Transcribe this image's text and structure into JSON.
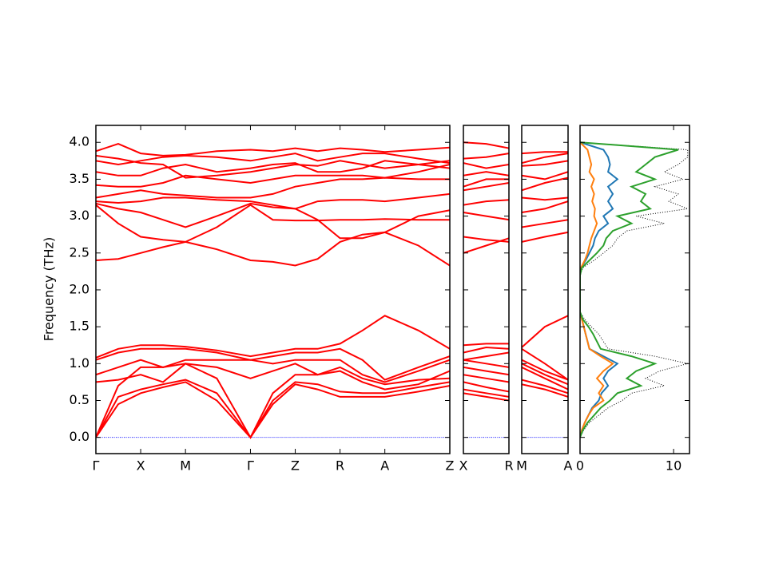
{
  "chart_data": [
    {
      "type": "line",
      "ylabel": "Frequency (THz)",
      "color": "#ff0000",
      "xlim": [
        0,
        7.9
      ],
      "ylim": [
        -0.22,
        4.23
      ],
      "xticks": [
        {
          "value": 0,
          "label": "Γ"
        },
        {
          "value": 1,
          "label": "X"
        },
        {
          "value": 2,
          "label": "M"
        },
        {
          "value": 3.45,
          "label": "Γ"
        },
        {
          "value": 4.45,
          "label": "Z"
        },
        {
          "value": 5.45,
          "label": "R"
        },
        {
          "value": 6.45,
          "label": "A"
        },
        {
          "value": 7.9,
          "label": "Z"
        }
      ],
      "yticks": [
        {
          "value": 0,
          "label": "0.0"
        },
        {
          "value": 0.5,
          "label": "0.5"
        },
        {
          "value": 1,
          "label": "1.0"
        },
        {
          "value": 1.5,
          "label": "1.5"
        },
        {
          "value": 2,
          "label": "2.0"
        },
        {
          "value": 2.5,
          "label": "2.5"
        },
        {
          "value": 3,
          "label": "3.0"
        },
        {
          "value": 3.5,
          "label": "3.5"
        },
        {
          "value": 4,
          "label": "4.0"
        }
      ],
      "hline": {
        "value": 0,
        "color": "#0000ff"
      },
      "x": [
        0,
        0.5,
        1,
        1.5,
        2,
        2.7,
        3.45,
        3.95,
        4.45,
        4.95,
        5.45,
        5.95,
        6.45,
        7.2,
        7.9
      ],
      "series": [
        {
          "values": [
            0,
            0.45,
            0.6,
            0.68,
            0.75,
            0.5,
            0,
            0.45,
            0.72,
            0.65,
            0.55,
            0.55,
            0.55,
            0.62,
            0.7
          ]
        },
        {
          "values": [
            0,
            0.55,
            0.65,
            0.72,
            0.78,
            0.6,
            0,
            0.5,
            0.75,
            0.72,
            0.62,
            0.6,
            0.6,
            0.68,
            0.75
          ]
        },
        {
          "values": [
            0,
            0.7,
            0.95,
            0.95,
            1.0,
            0.8,
            0,
            0.6,
            0.85,
            0.85,
            0.95,
            0.8,
            0.72,
            0.78,
            0.8
          ]
        },
        {
          "values": [
            0.75,
            0.78,
            0.85,
            0.75,
            1.0,
            0.95,
            0.8,
            0.9,
            1.0,
            0.85,
            0.9,
            0.75,
            0.65,
            0.72,
            0.9
          ]
        },
        {
          "values": [
            0.85,
            0.95,
            1.05,
            0.95,
            1.05,
            1.05,
            1.05,
            1.0,
            1.05,
            1.05,
            1.05,
            0.85,
            0.75,
            0.9,
            1.05
          ]
        },
        {
          "values": [
            1.05,
            1.15,
            1.2,
            1.2,
            1.2,
            1.15,
            1.05,
            1.1,
            1.15,
            1.15,
            1.2,
            1.05,
            0.78,
            0.95,
            1.1
          ]
        },
        {
          "values": [
            1.08,
            1.2,
            1.25,
            1.25,
            1.23,
            1.18,
            1.1,
            1.15,
            1.2,
            1.2,
            1.27,
            1.45,
            1.65,
            1.45,
            1.2
          ]
        },
        {
          "values": [
            2.4,
            2.42,
            2.5,
            2.58,
            2.65,
            2.55,
            2.4,
            2.38,
            2.33,
            2.42,
            2.65,
            2.75,
            2.78,
            2.6,
            2.33
          ]
        },
        {
          "values": [
            3.15,
            2.9,
            2.72,
            2.68,
            2.65,
            2.85,
            3.15,
            2.95,
            2.94,
            2.94,
            2.95,
            2.95,
            2.96,
            2.95,
            2.95
          ]
        },
        {
          "values": [
            3.17,
            3.1,
            3.05,
            2.95,
            2.85,
            3.0,
            3.17,
            3.12,
            3.1,
            2.95,
            2.7,
            2.7,
            2.78,
            3.0,
            3.08
          ]
        },
        {
          "values": [
            3.2,
            3.18,
            3.2,
            3.25,
            3.25,
            3.22,
            3.2,
            3.15,
            3.1,
            3.2,
            3.22,
            3.22,
            3.2,
            3.25,
            3.3
          ]
        },
        {
          "values": [
            3.25,
            3.3,
            3.35,
            3.3,
            3.28,
            3.25,
            3.25,
            3.3,
            3.4,
            3.45,
            3.5,
            3.5,
            3.52,
            3.5,
            3.5
          ]
        },
        {
          "values": [
            3.42,
            3.4,
            3.4,
            3.45,
            3.55,
            3.5,
            3.45,
            3.5,
            3.55,
            3.55,
            3.55,
            3.55,
            3.52,
            3.6,
            3.7
          ]
        },
        {
          "values": [
            3.6,
            3.55,
            3.55,
            3.65,
            3.7,
            3.6,
            3.65,
            3.7,
            3.72,
            3.6,
            3.6,
            3.65,
            3.75,
            3.7,
            3.65
          ]
        },
        {
          "values": [
            3.75,
            3.7,
            3.75,
            3.8,
            3.82,
            3.8,
            3.75,
            3.8,
            3.85,
            3.75,
            3.8,
            3.85,
            3.85,
            3.78,
            3.72
          ]
        },
        {
          "values": [
            3.88,
            3.98,
            3.85,
            3.82,
            3.83,
            3.88,
            3.9,
            3.88,
            3.92,
            3.88,
            3.92,
            3.9,
            3.87,
            3.9,
            3.93
          ]
        },
        {
          "values": [
            3.82,
            3.78,
            3.72,
            3.7,
            3.52,
            3.55,
            3.6,
            3.65,
            3.7,
            3.68,
            3.75,
            3.7,
            3.65,
            3.7,
            3.75
          ]
        }
      ]
    },
    {
      "type": "line",
      "color": "#ff0000",
      "xlim": [
        0,
        1
      ],
      "ylim": [
        -0.22,
        4.23
      ],
      "xticks": [
        {
          "value": 0,
          "label": "X"
        },
        {
          "value": 1,
          "label": "R"
        }
      ],
      "hline": {
        "value": 0,
        "color": "#0000ff"
      },
      "x": [
        0,
        0.5,
        1
      ],
      "series": [
        {
          "values": [
            0.6,
            0.55,
            0.5
          ]
        },
        {
          "values": [
            0.65,
            0.6,
            0.55
          ]
        },
        {
          "values": [
            0.75,
            0.68,
            0.62
          ]
        },
        {
          "values": [
            0.85,
            0.8,
            0.75
          ]
        },
        {
          "values": [
            0.95,
            0.9,
            0.85
          ]
        },
        {
          "values": [
            1.05,
            1.0,
            0.95
          ]
        },
        {
          "values": [
            1.05,
            1.1,
            1.15
          ]
        },
        {
          "values": [
            1.15,
            1.22,
            1.2
          ]
        },
        {
          "values": [
            1.25,
            1.27,
            1.27
          ]
        },
        {
          "values": [
            2.5,
            2.6,
            2.7
          ]
        },
        {
          "values": [
            2.72,
            2.68,
            2.65
          ]
        },
        {
          "values": [
            3.05,
            3.0,
            2.95
          ]
        },
        {
          "values": [
            3.15,
            3.2,
            3.22
          ]
        },
        {
          "values": [
            3.35,
            3.4,
            3.45
          ]
        },
        {
          "values": [
            3.4,
            3.5,
            3.5
          ]
        },
        {
          "values": [
            3.55,
            3.6,
            3.55
          ]
        },
        {
          "values": [
            3.72,
            3.65,
            3.7
          ]
        },
        {
          "values": [
            3.78,
            3.8,
            3.85
          ]
        },
        {
          "values": [
            4.0,
            3.98,
            3.92
          ]
        }
      ]
    },
    {
      "type": "line",
      "color": "#ff0000",
      "xlim": [
        0,
        1
      ],
      "ylim": [
        -0.22,
        4.23
      ],
      "xticks": [
        {
          "value": 0,
          "label": "M"
        },
        {
          "value": 1,
          "label": "A"
        }
      ],
      "hline": {
        "value": 0,
        "color": "#0000ff"
      },
      "x": [
        0,
        0.5,
        1
      ],
      "series": [
        {
          "values": [
            0.72,
            0.65,
            0.55
          ]
        },
        {
          "values": [
            0.78,
            0.7,
            0.6
          ]
        },
        {
          "values": [
            0.95,
            0.8,
            0.65
          ]
        },
        {
          "values": [
            1.0,
            0.85,
            0.72
          ]
        },
        {
          "values": [
            1.05,
            0.9,
            0.78
          ]
        },
        {
          "values": [
            1.2,
            1.0,
            0.78
          ]
        },
        {
          "values": [
            1.22,
            1.5,
            1.65
          ]
        },
        {
          "values": [
            2.65,
            2.72,
            2.78
          ]
        },
        {
          "values": [
            2.85,
            2.9,
            2.95
          ]
        },
        {
          "values": [
            3.05,
            3.1,
            3.2
          ]
        },
        {
          "values": [
            3.25,
            3.22,
            3.25
          ]
        },
        {
          "values": [
            3.35,
            3.45,
            3.52
          ]
        },
        {
          "values": [
            3.55,
            3.5,
            3.6
          ]
        },
        {
          "values": [
            3.68,
            3.7,
            3.75
          ]
        },
        {
          "values": [
            3.72,
            3.8,
            3.85
          ]
        },
        {
          "values": [
            3.85,
            3.87,
            3.87
          ]
        }
      ]
    },
    {
      "type": "line",
      "orientation": "horizontal",
      "xlim": [
        0,
        11.7
      ],
      "ylim": [
        -0.22,
        4.23
      ],
      "xticks": [
        0,
        10
      ],
      "y": [
        0,
        0.1,
        0.2,
        0.3,
        0.4,
        0.5,
        0.6,
        0.7,
        0.8,
        0.9,
        1.0,
        1.1,
        1.2,
        1.3,
        1.4,
        1.5,
        1.6,
        1.7,
        1.8,
        1.9,
        2.0,
        2.1,
        2.2,
        2.3,
        2.4,
        2.5,
        2.6,
        2.7,
        2.8,
        2.9,
        3.0,
        3.1,
        3.2,
        3.3,
        3.4,
        3.5,
        3.6,
        3.7,
        3.8,
        3.9,
        4.0
      ],
      "series": [
        {
          "color": "#000000",
          "dashed": true,
          "values": [
            0,
            0.4,
            1.0,
            2.0,
            3.0,
            4.5,
            5.5,
            9.0,
            7.0,
            8.5,
            11.5,
            8.0,
            3.0,
            2.5,
            2.0,
            1.2,
            0.5,
            0,
            0,
            0,
            0,
            0,
            0,
            0.3,
            1.5,
            2.5,
            3.5,
            4.0,
            5.0,
            9.0,
            6.0,
            11.5,
            9.5,
            10.5,
            8.0,
            11.0,
            9.0,
            10.5,
            11.5,
            11.5,
            0
          ]
        },
        {
          "color": "#1f77b4",
          "values": [
            0,
            0.2,
            0.5,
            0.9,
            1.3,
            2.0,
            2.3,
            3.0,
            2.5,
            3.0,
            4.0,
            2.5,
            1.0,
            0.8,
            0.6,
            0.4,
            0.2,
            0,
            0,
            0,
            0,
            0,
            0,
            0.1,
            0.6,
            1.0,
            1.4,
            1.6,
            2.0,
            3.0,
            2.5,
            3.5,
            3.0,
            3.5,
            3.0,
            4.0,
            3.0,
            3.2,
            3.0,
            2.5,
            0
          ]
        },
        {
          "color": "#ff7f0e",
          "values": [
            0,
            0.2,
            0.5,
            0.9,
            1.4,
            2.5,
            2.0,
            2.5,
            1.8,
            2.5,
            3.5,
            2.2,
            1.0,
            0.8,
            0.6,
            0.4,
            0.2,
            0,
            0,
            0,
            0,
            0,
            0,
            0.1,
            0.5,
            0.8,
            1.0,
            1.2,
            1.5,
            1.8,
            1.5,
            1.6,
            1.3,
            1.5,
            1.2,
            1.5,
            1.0,
            1.2,
            1.0,
            0.8,
            0
          ]
        },
        {
          "color": "#2ca02c",
          "values": [
            0,
            0.3,
            0.8,
            1.5,
            2.2,
            3.2,
            4.0,
            6.5,
            5.0,
            6.0,
            8.0,
            5.5,
            2.2,
            1.8,
            1.4,
            0.9,
            0.3,
            0,
            0,
            0,
            0,
            0,
            0,
            0.2,
            1.0,
            1.8,
            2.5,
            2.8,
            3.5,
            5.5,
            4.0,
            7.5,
            6.5,
            7.0,
            5.5,
            8.0,
            6.0,
            7.0,
            8.0,
            10.5,
            0
          ]
        }
      ]
    }
  ]
}
